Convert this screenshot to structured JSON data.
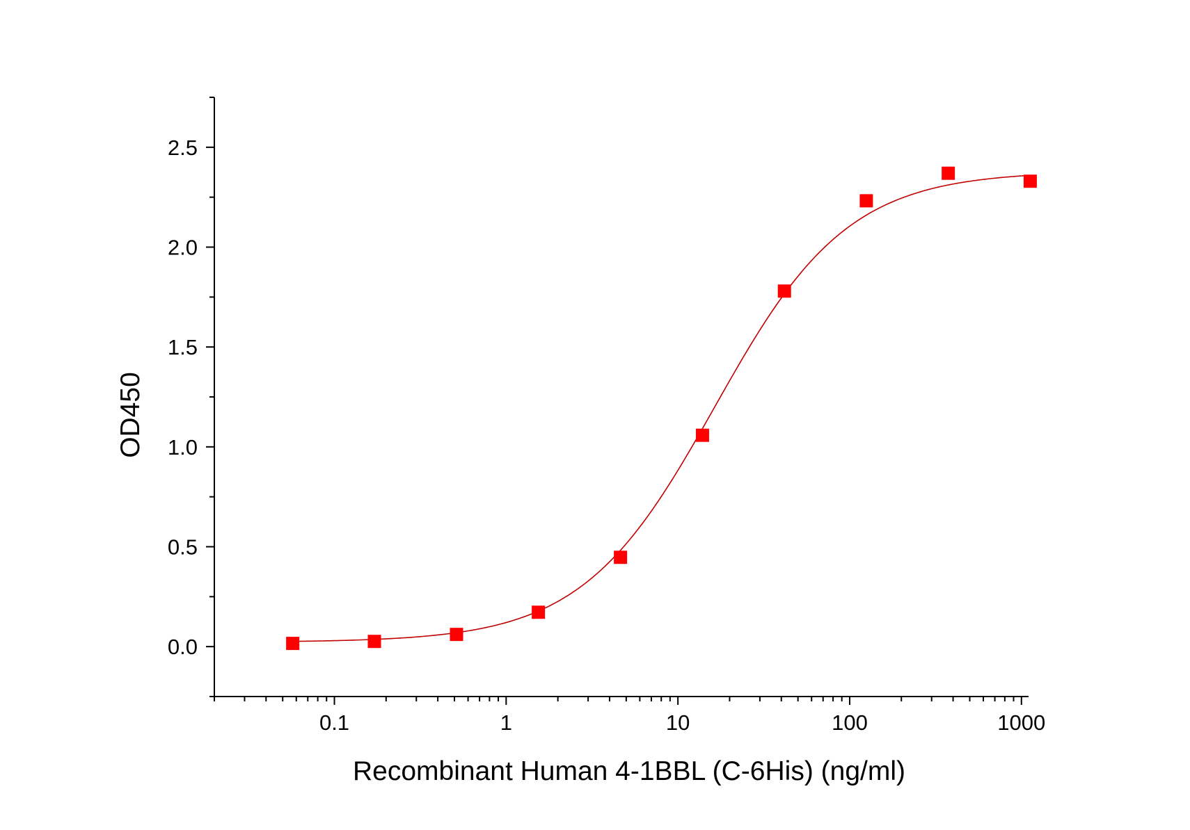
{
  "chart_data": {
    "type": "scatter",
    "xlabel": "Recombinant Human 4-1BBL (C-6His) (ng/ml)",
    "ylabel": "OD450",
    "x_scale": "log10",
    "xlim": [
      0.02,
      1100
    ],
    "ylim": [
      -0.25,
      2.75
    ],
    "x_ticks": [
      0.1,
      1,
      10,
      100,
      1000
    ],
    "x_tick_labels": [
      "0.1",
      "1",
      "10",
      "100",
      "1000"
    ],
    "y_ticks": [
      0.0,
      0.5,
      1.0,
      1.5,
      2.0,
      2.5
    ],
    "y_tick_labels": [
      "0.0",
      "0.5",
      "1.0",
      "1.5",
      "2.0",
      "2.5"
    ],
    "grid": false,
    "legend": "none",
    "series": [
      {
        "kind": "points",
        "marker": "square",
        "color": "#ff0000",
        "x": [
          0.0572,
          0.171,
          0.514,
          1.54,
          4.63,
          13.9,
          41.7,
          125,
          375,
          1125
        ],
        "y": [
          0.016,
          0.026,
          0.061,
          0.172,
          0.447,
          1.058,
          1.78,
          2.232,
          2.37,
          2.33
        ]
      },
      {
        "kind": "fit",
        "model": "4PL",
        "color": "#c00000",
        "bottom": 0.022,
        "top": 2.38,
        "ec50": 16.4,
        "hill": 1.12,
        "x_range": [
          0.0572,
          1100
        ]
      }
    ]
  }
}
